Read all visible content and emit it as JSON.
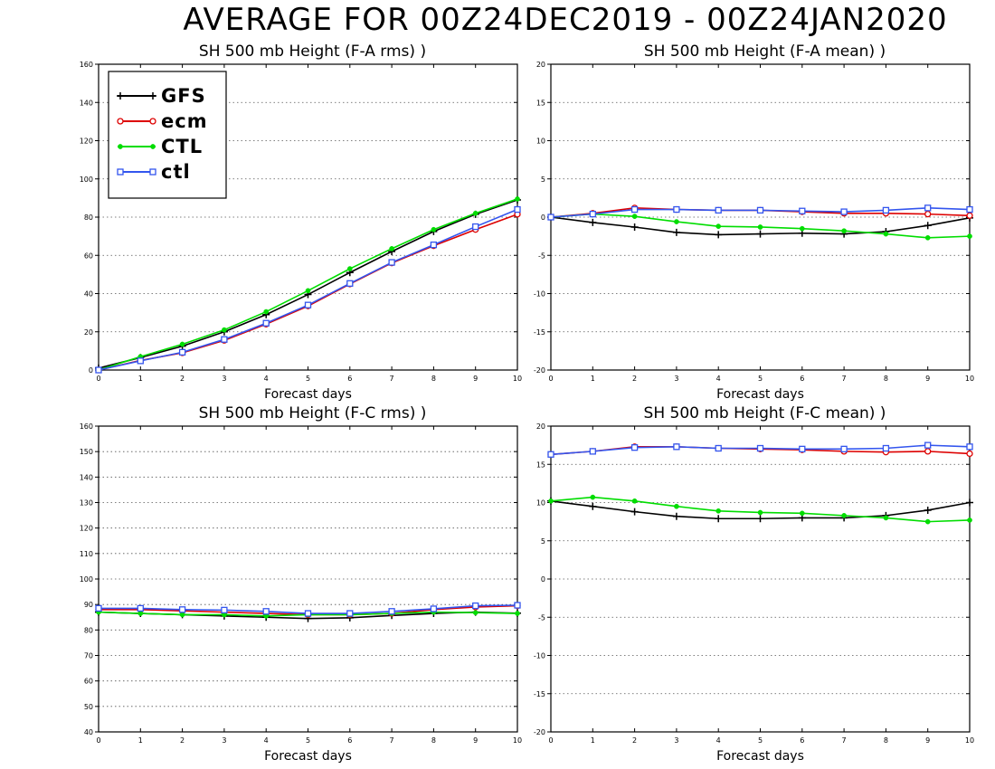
{
  "title": "AVERAGE FOR 00Z24DEC2019 - 00Z24JAN2020",
  "colors": {
    "GFS": "#000000",
    "ecm": "#dd0000",
    "CTL": "#00dd00",
    "ctl": "#3355ee"
  },
  "legend": {
    "entries": [
      {
        "label": "GFS",
        "marker": "plus"
      },
      {
        "label": "ecm",
        "marker": "circle"
      },
      {
        "label": "CTL",
        "marker": "dot"
      },
      {
        "label": "ctl",
        "marker": "square"
      }
    ]
  },
  "chart_data": [
    {
      "type": "line",
      "title": "SH 500 mb Height (F-A rms) )",
      "xlabel": "Forecast days",
      "x": [
        0,
        1,
        2,
        3,
        4,
        5,
        6,
        7,
        8,
        9,
        10
      ],
      "xlim": [
        0,
        10
      ],
      "ylim": [
        0,
        160
      ],
      "yticks": [
        0,
        20,
        40,
        60,
        80,
        100,
        120,
        140,
        160
      ],
      "grid": true,
      "legend": "top-left",
      "series": [
        {
          "name": "GFS",
          "values": [
            1,
            6.5,
            12.5,
            20,
            29,
            39.5,
            51,
            62,
            72.5,
            81.5,
            89
          ]
        },
        {
          "name": "ecm",
          "values": [
            0,
            5,
            9,
            15.5,
            24,
            33.5,
            45,
            56,
            65,
            73.5,
            81.5
          ]
        },
        {
          "name": "CTL",
          "values": [
            0,
            7,
            13.5,
            21,
            30.5,
            41.5,
            53,
            63.5,
            73.5,
            82,
            89.5
          ]
        },
        {
          "name": "ctl",
          "values": [
            0,
            4.8,
            9.3,
            16,
            24.5,
            34,
            45.3,
            56.3,
            65.5,
            75,
            84
          ]
        }
      ]
    },
    {
      "type": "line",
      "title": "SH 500 mb Height (F-A mean) )",
      "xlabel": "Forecast days",
      "x": [
        0,
        1,
        2,
        3,
        4,
        5,
        6,
        7,
        8,
        9,
        10
      ],
      "xlim": [
        0,
        10
      ],
      "ylim": [
        -20,
        20
      ],
      "yticks": [
        -20,
        -15,
        -10,
        -5,
        0,
        5,
        10,
        15,
        20
      ],
      "grid": true,
      "series": [
        {
          "name": "GFS",
          "values": [
            0,
            -0.7,
            -1.3,
            -2,
            -2.3,
            -2.2,
            -2.1,
            -2.2,
            -1.9,
            -1.1,
            -0.1
          ]
        },
        {
          "name": "ecm",
          "values": [
            0,
            0.5,
            1.2,
            1.0,
            0.9,
            0.9,
            0.7,
            0.5,
            0.5,
            0.4,
            0.2
          ]
        },
        {
          "name": "CTL",
          "values": [
            0,
            0.4,
            0.1,
            -0.6,
            -1.2,
            -1.3,
            -1.5,
            -1.8,
            -2.2,
            -2.7,
            -2.5
          ]
        },
        {
          "name": "ctl",
          "values": [
            0,
            0.4,
            1.0,
            1.0,
            0.9,
            0.9,
            0.8,
            0.7,
            0.9,
            1.2,
            1.0
          ]
        }
      ]
    },
    {
      "type": "line",
      "title": "SH 500 mb Height (F-C rms) )",
      "xlabel": "Forecast days",
      "x": [
        0,
        1,
        2,
        3,
        4,
        5,
        6,
        7,
        8,
        9,
        10
      ],
      "xlim": [
        0,
        10
      ],
      "ylim": [
        40,
        160
      ],
      "yticks": [
        40,
        50,
        60,
        70,
        80,
        90,
        100,
        110,
        120,
        130,
        140,
        150,
        160
      ],
      "grid": true,
      "series": [
        {
          "name": "GFS",
          "values": [
            87,
            86.5,
            86,
            85.5,
            85,
            84.5,
            84.8,
            85.7,
            86.5,
            87,
            86.6
          ]
        },
        {
          "name": "ecm",
          "values": [
            88,
            88,
            87.5,
            87,
            86.5,
            86,
            86,
            86.5,
            88,
            89,
            89.5
          ]
        },
        {
          "name": "CTL",
          "values": [
            87,
            86.5,
            86,
            86,
            85.5,
            86,
            86,
            86.5,
            87,
            86.8,
            86.5
          ]
        },
        {
          "name": "ctl",
          "values": [
            88.5,
            88.5,
            88,
            87.8,
            87.3,
            86.5,
            86.5,
            87.3,
            88.3,
            89.5,
            89.7
          ]
        }
      ]
    },
    {
      "type": "line",
      "title": "SH 500 mb Height (F-C mean) )",
      "xlabel": "Forecast days",
      "x": [
        0,
        1,
        2,
        3,
        4,
        5,
        6,
        7,
        8,
        9,
        10
      ],
      "xlim": [
        0,
        10
      ],
      "ylim": [
        -20,
        20
      ],
      "yticks": [
        -20,
        -15,
        -10,
        -5,
        0,
        5,
        10,
        15,
        20
      ],
      "grid": true,
      "series": [
        {
          "name": "GFS",
          "values": [
            10.2,
            9.5,
            8.8,
            8.2,
            7.9,
            7.9,
            8.0,
            8.0,
            8.3,
            9.0,
            10.0
          ]
        },
        {
          "name": "ecm",
          "values": [
            16.3,
            16.7,
            17.3,
            17.3,
            17.1,
            17.0,
            16.9,
            16.7,
            16.6,
            16.7,
            16.4
          ]
        },
        {
          "name": "CTL",
          "values": [
            10.2,
            10.7,
            10.2,
            9.5,
            8.9,
            8.7,
            8.6,
            8.3,
            8.0,
            7.5,
            7.7
          ]
        },
        {
          "name": "ctl",
          "values": [
            16.3,
            16.7,
            17.2,
            17.3,
            17.1,
            17.1,
            17.0,
            17.0,
            17.1,
            17.5,
            17.3
          ]
        }
      ]
    }
  ]
}
